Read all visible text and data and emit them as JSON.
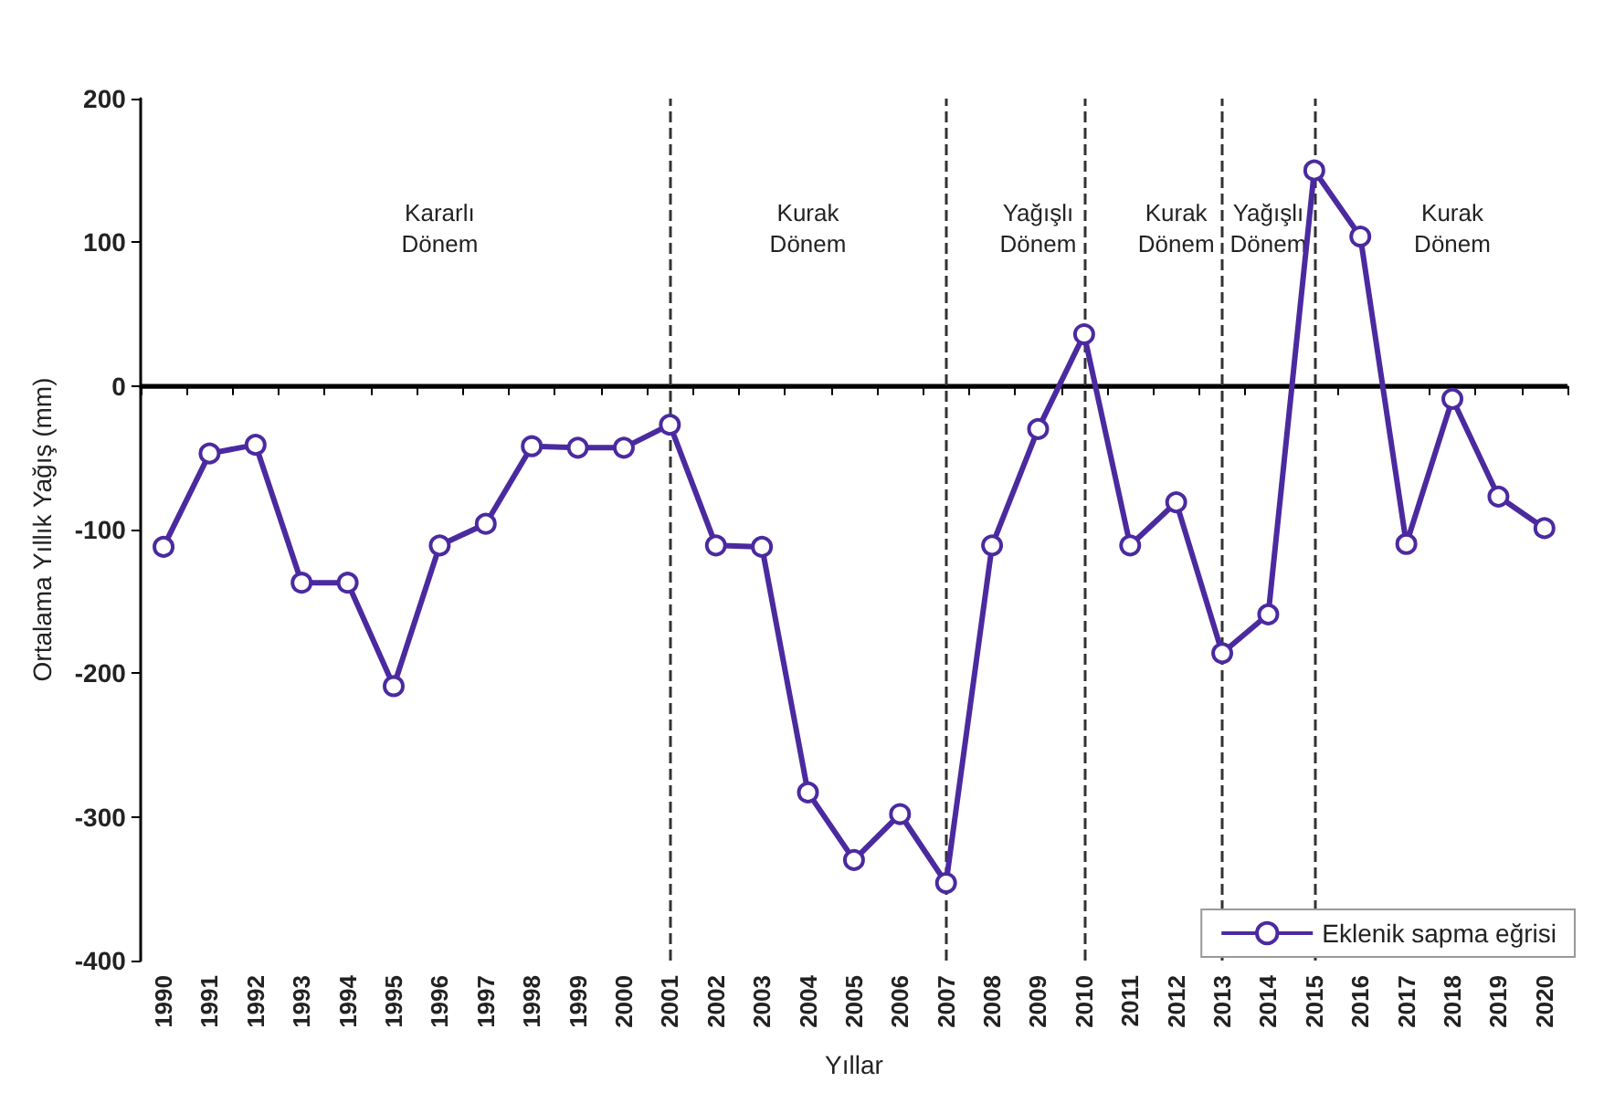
{
  "chart_data": {
    "type": "line",
    "xlabel": "Yıllar",
    "ylabel": "Ortalama Yıllık Yağış (mm)",
    "categories": [
      "1990",
      "1991",
      "1992",
      "1993",
      "1994",
      "1995",
      "1996",
      "1997",
      "1998",
      "1999",
      "2000",
      "2001",
      "2002",
      "2003",
      "2004",
      "2005",
      "2006",
      "2007",
      "2008",
      "2009",
      "2010",
      "2011",
      "2012",
      "2013",
      "2014",
      "2015",
      "2016",
      "2017",
      "2018",
      "2019",
      "2020"
    ],
    "series": [
      {
        "name": "Eklenik sapma eğrisi",
        "color": "#4b2aa0",
        "values": [
          -112,
          -47,
          -41,
          -137,
          -137,
          -209,
          -111,
          -96,
          -42,
          -43,
          -43,
          -27,
          -111,
          -112,
          -283,
          -330,
          -298,
          -346,
          -111,
          -30,
          36,
          -111,
          -81,
          -186,
          -159,
          150,
          104,
          -110,
          -9,
          -77,
          -99
        ]
      }
    ],
    "ylim": [
      -400,
      200
    ],
    "yticks": [
      -400,
      -300,
      -200,
      -100,
      0,
      100,
      200
    ],
    "grid": false,
    "legend": "bottom right",
    "marker": "circle",
    "line_style": "solid",
    "ref_lines": [
      {
        "axis": "y",
        "value": 0,
        "color": "#000000",
        "line_style": "solid"
      },
      {
        "axis": "x",
        "value": "2001",
        "color": "#333333",
        "line_style": "dashed"
      },
      {
        "axis": "x",
        "value": "2007",
        "color": "#333333",
        "line_style": "dashed"
      },
      {
        "axis": "x",
        "value": "2010",
        "color": "#333333",
        "line_style": "dashed"
      },
      {
        "axis": "x",
        "value": "2013",
        "color": "#333333",
        "line_style": "dashed"
      },
      {
        "axis": "x",
        "value": "2015",
        "color": "#333333",
        "line_style": "dashed"
      }
    ],
    "annotations": [
      "Kararlı\nDönem",
      "Kurak\nDönem",
      "Yağışlı\nDönem",
      "Kurak\nDönem",
      "Yağışlı\nDönem",
      "Kurak\nDönem"
    ]
  }
}
